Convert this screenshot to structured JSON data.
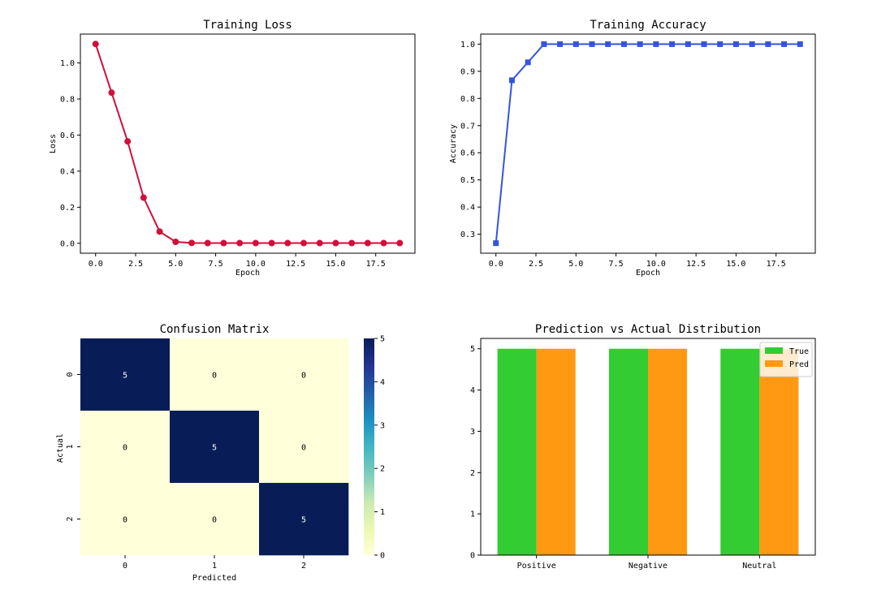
{
  "chart_data": [
    {
      "type": "line",
      "title": "Training Loss",
      "xlabel": "Epoch",
      "ylabel": "Loss",
      "x": [
        0,
        1,
        2,
        3,
        4,
        5,
        6,
        7,
        8,
        9,
        10,
        11,
        12,
        13,
        14,
        15,
        16,
        17,
        18,
        19
      ],
      "values": [
        1.105,
        0.835,
        0.565,
        0.253,
        0.065,
        0.008,
        0.002,
        0.001,
        0.001,
        0.001,
        0.001,
        0.001,
        0.001,
        0.001,
        0.001,
        0.001,
        0.001,
        0.001,
        0.001,
        0.001
      ],
      "xlim": [
        -0.95,
        19.95
      ],
      "ylim": [
        -0.055,
        1.16
      ],
      "xticks": [
        0,
        2.5,
        5,
        7.5,
        10,
        12.5,
        15,
        17.5
      ],
      "xtick_labels": [
        "0.0",
        "2.5",
        "5.0",
        "7.5",
        "10.0",
        "12.5",
        "15.0",
        "17.5"
      ],
      "yticks": [
        0,
        0.2,
        0.4,
        0.6,
        0.8,
        1.0
      ],
      "ytick_labels": [
        "0.0",
        "0.2",
        "0.4",
        "0.6",
        "0.8",
        "1.0"
      ],
      "color": "#d0103a",
      "marker": "circle",
      "grid": false
    },
    {
      "type": "line",
      "title": "Training Accuracy",
      "xlabel": "Epoch",
      "ylabel": "Accuracy",
      "x": [
        0,
        1,
        2,
        3,
        4,
        5,
        6,
        7,
        8,
        9,
        10,
        11,
        12,
        13,
        14,
        15,
        16,
        17,
        18,
        19
      ],
      "values": [
        0.267,
        0.867,
        0.933,
        1.0,
        1.0,
        1.0,
        1.0,
        1.0,
        1.0,
        1.0,
        1.0,
        1.0,
        1.0,
        1.0,
        1.0,
        1.0,
        1.0,
        1.0,
        1.0,
        1.0
      ],
      "xlim": [
        -0.95,
        19.95
      ],
      "ylim": [
        0.23,
        1.037
      ],
      "xticks": [
        0,
        2.5,
        5,
        7.5,
        10,
        12.5,
        15,
        17.5
      ],
      "xtick_labels": [
        "0.0",
        "2.5",
        "5.0",
        "7.5",
        "10.0",
        "12.5",
        "15.0",
        "17.5"
      ],
      "yticks": [
        0.3,
        0.4,
        0.5,
        0.6,
        0.7,
        0.8,
        0.9,
        1.0
      ],
      "ytick_labels": [
        "0.3",
        "0.4",
        "0.5",
        "0.6",
        "0.7",
        "0.8",
        "0.9",
        "1.0"
      ],
      "color": "#3355dd",
      "marker": "square",
      "grid": false
    },
    {
      "type": "heatmap",
      "title": "Confusion Matrix",
      "xlabel": "Predicted",
      "ylabel": "Actual",
      "x_labels": [
        "0",
        "1",
        "2"
      ],
      "y_labels": [
        "0",
        "1",
        "2"
      ],
      "matrix": [
        [
          5,
          0,
          0
        ],
        [
          0,
          5,
          0
        ],
        [
          0,
          0,
          5
        ]
      ],
      "colormap": "YlGnBu",
      "low_color": "#ffffd9",
      "high_color": "#081d58",
      "colorbar_range": [
        0,
        5
      ],
      "colorbar_ticks": [
        "0",
        "1",
        "2",
        "3",
        "4",
        "5"
      ]
    },
    {
      "type": "bar",
      "title": "Prediction vs Actual Distribution",
      "categories": [
        "Positive",
        "Negative",
        "Neutral"
      ],
      "series": [
        {
          "name": "True",
          "values": [
            5,
            5,
            5
          ],
          "color": "#33cc33"
        },
        {
          "name": "Pred",
          "values": [
            5,
            5,
            5
          ],
          "color": "#ff9911"
        }
      ],
      "ylim": [
        0,
        5.25
      ],
      "yticks": [
        "0",
        "1",
        "2",
        "3",
        "4",
        "5"
      ],
      "legend": "top-right",
      "xlabel": "",
      "ylabel": ""
    }
  ]
}
